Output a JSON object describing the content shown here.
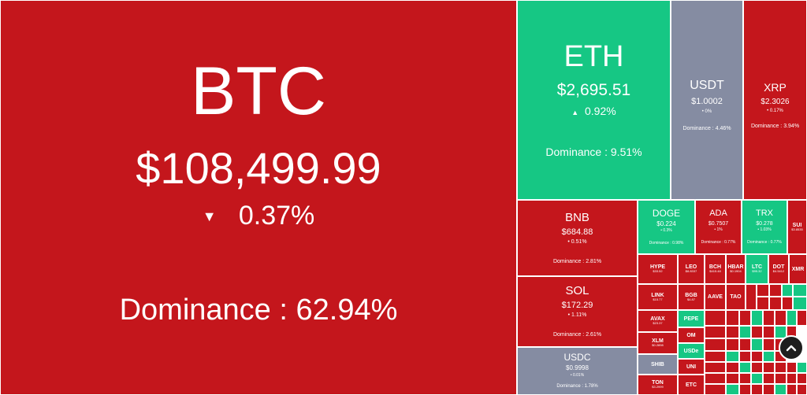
{
  "colors": {
    "down": "#c4161c",
    "up": "#16c784",
    "stable": "#858ca2"
  },
  "large": {
    "btc": {
      "symbol": "BTC",
      "price": "$108,499.99",
      "arrow": "▼",
      "change": "0.37%",
      "dominance": "Dominance : 62.94%"
    },
    "eth": {
      "symbol": "ETH",
      "price": "$2,695.51",
      "arrow": "▲",
      "change": "0.92%",
      "dominance": "Dominance : 9.51%"
    },
    "usdt": {
      "symbol": "USDT",
      "price": "$1.0002",
      "change": "• 0%",
      "dominance": "Dominance : 4.46%"
    },
    "xrp": {
      "symbol": "XRP",
      "price": "$2.3026",
      "change": "• 0.17%",
      "dominance": "Dominance : 3.94%"
    },
    "bnb": {
      "symbol": "BNB",
      "price": "$684.88",
      "change": "• 0.51%",
      "dominance": "Dominance : 2.81%"
    },
    "sol": {
      "symbol": "SOL",
      "price": "$172.29",
      "change": "• 1.11%",
      "dominance": "Dominance : 2.61%"
    },
    "usdc": {
      "symbol": "USDC",
      "price": "$0.9998",
      "change": "• 0.01%",
      "dominance": "Dominance : 1.78%"
    },
    "doge": {
      "symbol": "DOGE",
      "price": "$0.224",
      "change": "• 0.3%",
      "dominance": "Dominance : 0.98%"
    },
    "ada": {
      "symbol": "ADA",
      "price": "$0.7507",
      "change": "• 1%",
      "dominance": "Dominance : 0.77%"
    },
    "trx": {
      "symbol": "TRX",
      "price": "$0.278",
      "change": "• 1.03%",
      "dominance": "Dominance : 0.77%"
    }
  },
  "small": {
    "sui": {
      "symbol": "SUI",
      "price": "$3.8535"
    },
    "hype": {
      "symbol": "HYPE",
      "price": "$33.52"
    },
    "leo": {
      "symbol": "LEO",
      "price": "$8.8337"
    },
    "bch": {
      "symbol": "BCH",
      "price": "$415.48"
    },
    "hbar": {
      "symbol": "HBAR",
      "price": "$0.1904"
    },
    "ltc": {
      "symbol": "LTC",
      "price": "$95.32"
    },
    "dot": {
      "symbol": "DOT",
      "price": "$4.5412"
    },
    "xmr": {
      "symbol": "XMR",
      "price": ""
    },
    "link": {
      "symbol": "LINK",
      "price": "$15.77"
    },
    "bgb": {
      "symbol": "BGB",
      "price": "$4.87"
    },
    "avax": {
      "symbol": "AVAX",
      "price": "$23.37"
    },
    "pepe": {
      "symbol": "PEPE",
      "price": ""
    },
    "xlm": {
      "symbol": "XLM",
      "price": "$0.2898"
    },
    "shib": {
      "symbol": "SHIB",
      "price": ""
    },
    "ton": {
      "symbol": "TON",
      "price": "$3.2999"
    },
    "om": {
      "symbol": "OM",
      "price": ""
    },
    "aave": {
      "symbol": "AAVE",
      "price": ""
    },
    "tao": {
      "symbol": "TAO",
      "price": ""
    },
    "uni": {
      "symbol": "UNI",
      "price": ""
    },
    "etc": {
      "symbol": "ETC",
      "price": ""
    },
    "usde": {
      "symbol": "USDe",
      "price": ""
    }
  },
  "controls": {
    "scroll_top_icon": "chevron-up-icon"
  }
}
